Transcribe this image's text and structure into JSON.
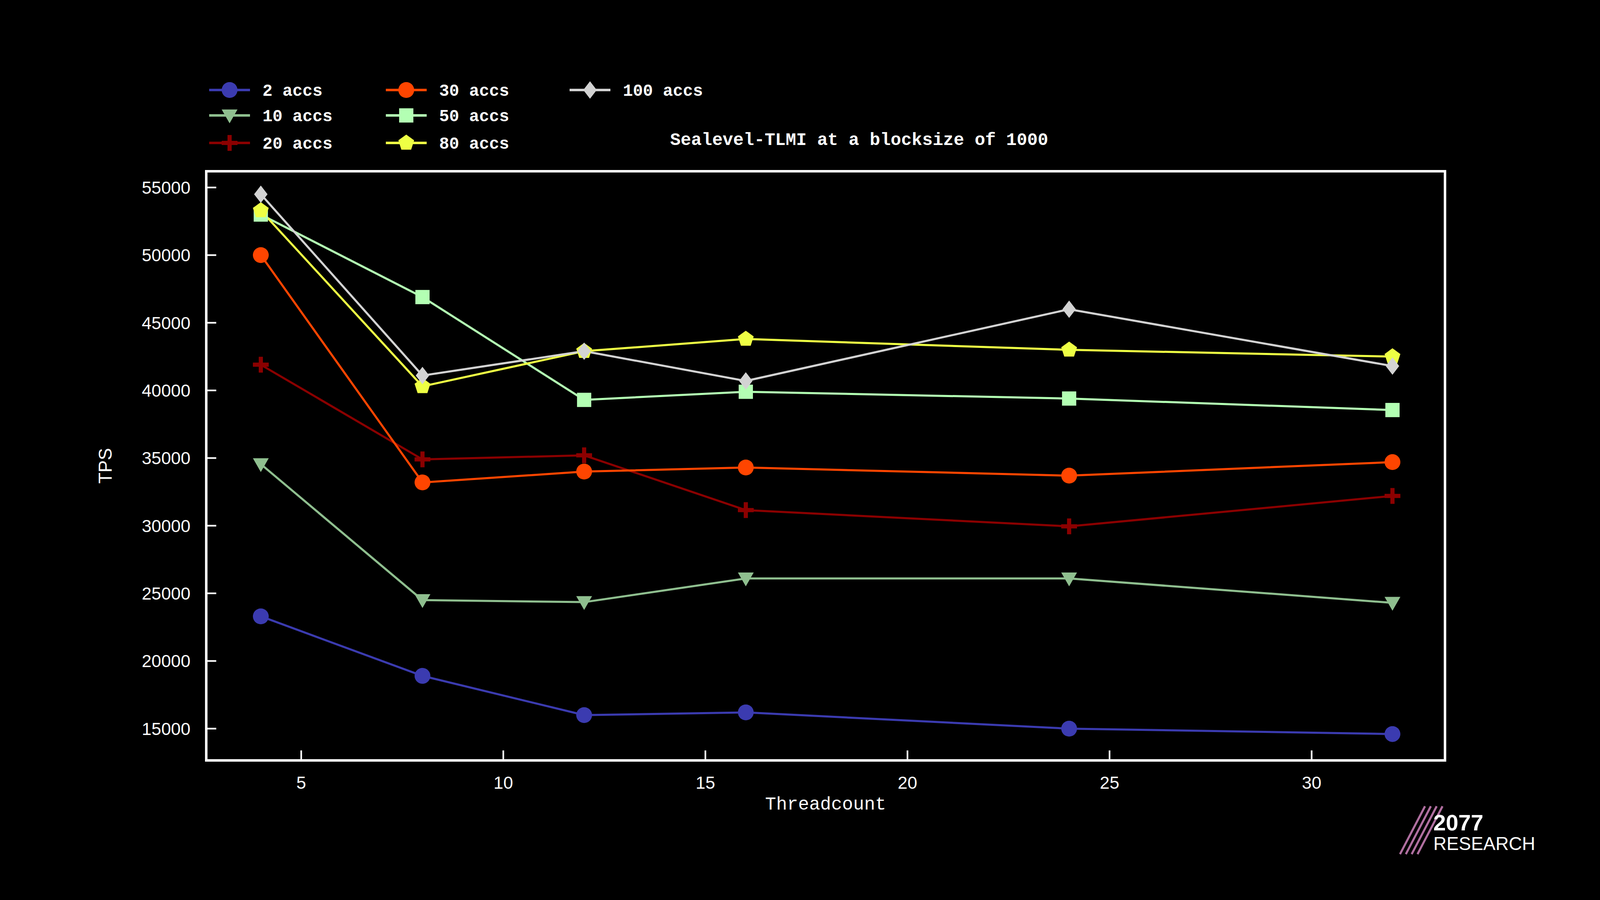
{
  "chart_data": {
    "type": "line",
    "title": "Sealevel-TLMI at a blocksize of 1000",
    "x_label": "Threadcount",
    "y_label": "TPS",
    "x": [
      4,
      8,
      12,
      16,
      24,
      32
    ],
    "xlim": [
      2.65,
      33.3
    ],
    "xticks": [
      5,
      10,
      15,
      20,
      25,
      30
    ],
    "ylim": [
      12650,
      56200
    ],
    "yticks": [
      15000,
      20000,
      25000,
      30000,
      35000,
      40000,
      45000,
      50000,
      55000
    ],
    "grid": false,
    "legend": "top-left",
    "annotations": [
      "2077",
      "RESEARCH"
    ],
    "series": [
      {
        "name": "2 accs",
        "color": "#3b3bb0",
        "marker": "circle",
        "values": [
          23300,
          18900,
          16000,
          16200,
          15000,
          14600
        ]
      },
      {
        "name": "10 accs",
        "color": "#8fbf8f",
        "marker": "triangle-down",
        "values": [
          34550,
          24500,
          24350,
          26100,
          26100,
          24300
        ]
      },
      {
        "name": "20 accs",
        "color": "#8b0000",
        "marker": "plus",
        "values": [
          41900,
          34900,
          35200,
          31150,
          29950,
          32200
        ]
      },
      {
        "name": "30 accs",
        "color": "#ff4500",
        "marker": "circle",
        "values": [
          50000,
          33200,
          34000,
          34300,
          33700,
          34700
        ]
      },
      {
        "name": "50 accs",
        "color": "#b3ffb3",
        "marker": "square",
        "values": [
          53000,
          46900,
          39300,
          39900,
          39400,
          38550
        ]
      },
      {
        "name": "80 accs",
        "color": "#eeff44",
        "marker": "pentagon",
        "values": [
          53300,
          40300,
          42900,
          43800,
          43000,
          42500
        ]
      },
      {
        "name": "100 accs",
        "color": "#d3d3d3",
        "marker": "diamond",
        "values": [
          54500,
          41100,
          42900,
          40700,
          46000,
          41800
        ]
      }
    ]
  }
}
